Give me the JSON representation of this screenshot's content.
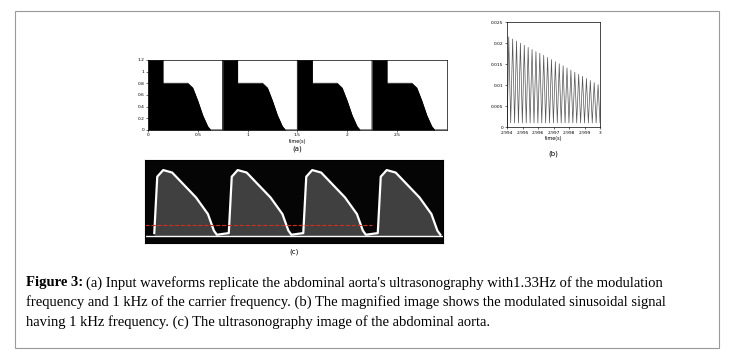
{
  "chart_data": [
    {
      "type": "area",
      "label": "(a)",
      "x_label": "time(s)",
      "color": "#000000",
      "grid": false,
      "x": [
        0,
        0.15,
        0.15,
        0.4,
        0.45,
        0.5,
        0.55,
        0.6,
        0.63,
        0.75,
        0.75,
        0.9,
        0.9,
        1.15,
        1.2,
        1.25,
        1.3,
        1.35,
        1.38,
        1.5,
        1.5,
        1.65,
        1.65,
        1.9,
        1.95,
        2.0,
        2.05,
        2.1,
        2.13,
        2.25,
        2.25,
        2.4,
        2.4,
        2.65,
        2.7,
        2.75,
        2.8,
        2.85,
        2.88,
        3.0
      ],
      "values": [
        1.2,
        1.2,
        0.8,
        0.8,
        0.72,
        0.5,
        0.25,
        0.06,
        0,
        0,
        1.2,
        1.2,
        0.8,
        0.8,
        0.72,
        0.5,
        0.25,
        0.06,
        0,
        0,
        1.2,
        1.2,
        0.8,
        0.8,
        0.72,
        0.5,
        0.25,
        0.06,
        0,
        0,
        1.2,
        1.2,
        0.8,
        0.8,
        0.72,
        0.5,
        0.25,
        0.06,
        0,
        0
      ],
      "xlim": [
        0,
        3
      ],
      "xticks": [
        0,
        0.5,
        1,
        1.5,
        2,
        2.5
      ],
      "ylim": [
        0,
        1.2
      ],
      "yticks": [
        0,
        0.2,
        0.4,
        0.6,
        0.8,
        1,
        1.2
      ]
    },
    {
      "type": "line",
      "label": "(b)",
      "x_label": "time(s)",
      "color": "#555555",
      "grid": false,
      "x": [
        2.994,
        2.9941,
        2.994225,
        2.99435,
        2.994475,
        2.9946,
        2.994725,
        2.99485,
        2.994975,
        2.9951,
        2.995225,
        2.99535,
        2.995475,
        2.9956,
        2.995725,
        2.99585,
        2.995975,
        2.9961,
        2.996225,
        2.99635,
        2.996475,
        2.9966,
        2.996725,
        2.99685,
        2.996975,
        2.9971,
        2.997225,
        2.99735,
        2.997475,
        2.9976,
        2.997725,
        2.99785,
        2.997975,
        2.9981,
        2.998225,
        2.99835,
        2.998475,
        2.9986,
        2.998725,
        2.99885,
        2.998975,
        2.9991,
        2.999225,
        2.99935,
        2.999475,
        2.9996,
        2.999725,
        2.99985,
        2.999975
      ],
      "values": [
        0,
        0.0215,
        0.001,
        0.021,
        0.001,
        0.0205,
        0.001,
        0.02,
        0.001,
        0.0195,
        0.001,
        0.019,
        0.001,
        0.0185,
        0.001,
        0.018,
        0.001,
        0.0176,
        0.001,
        0.0171,
        0.001,
        0.0166,
        0.001,
        0.0161,
        0.001,
        0.0156,
        0.001,
        0.0151,
        0.001,
        0.0146,
        0.001,
        0.0141,
        0.001,
        0.0136,
        0.001,
        0.0131,
        0.001,
        0.0126,
        0.001,
        0.0121,
        0.001,
        0.0116,
        0.001,
        0.0111,
        0.001,
        0.0106,
        0.001,
        0.0101,
        0.001
      ],
      "xlim": [
        2.994,
        3
      ],
      "xticks": [
        2.994,
        2.995,
        2.996,
        2.997,
        2.998,
        2.999,
        3
      ],
      "ylim": [
        0,
        0.025
      ],
      "yticks": [
        0,
        0.005,
        0.01,
        0.015,
        0.02,
        0.025
      ]
    },
    {
      "type": "image",
      "label": "(c)",
      "tick_labels": false,
      "color": "#ffffff",
      "xlim": [
        0,
        100
      ],
      "ylim": [
        0,
        100
      ],
      "x": [
        3,
        4,
        6,
        9,
        13,
        17,
        21,
        23,
        24,
        28,
        29,
        31,
        34,
        38,
        42,
        46,
        48,
        49,
        53,
        54,
        56,
        59,
        63,
        67,
        71,
        73,
        74,
        78,
        79,
        81,
        84,
        88,
        92,
        96,
        98,
        99
      ],
      "values": [
        12,
        80,
        88,
        85,
        70,
        55,
        35,
        15,
        10,
        12,
        80,
        88,
        85,
        70,
        55,
        35,
        15,
        10,
        12,
        80,
        88,
        85,
        70,
        55,
        35,
        15,
        10,
        12,
        80,
        88,
        85,
        70,
        55,
        35,
        15,
        10
      ],
      "baseline": 8,
      "reference_line": 22
    }
  ],
  "caption": {
    "label": "Figure 3:",
    "text": "(a) Input waveforms replicate the abdominal aorta's ultrasonography with1.33Hz of the modulation frequency and 1 kHz of the carrier frequency. (b) The magnified image shows the modulated sinusoidal signal having 1 kHz frequency. (c) The ultrasonography image of the abdominal aorta."
  }
}
